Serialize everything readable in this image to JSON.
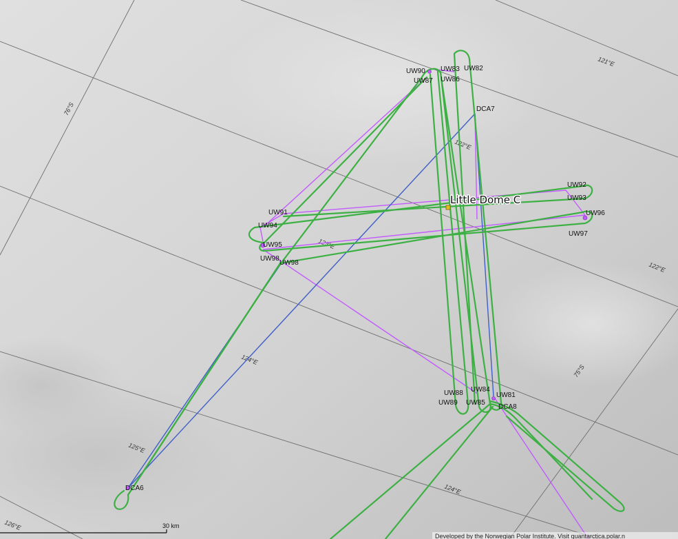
{
  "map": {
    "site_label": "Little Dome C",
    "scale_bar": {
      "label": "30 km"
    },
    "attribution": "Developed by the Norwegian Polar Institute. Visit quantarctica.polar.n",
    "grid_labels": {
      "lon_121": "121°E",
      "lon_122": "122°E",
      "lon_123": "123°E",
      "lon_124": "124°E",
      "lon_125": "125°E",
      "lon_126": "126°E",
      "lon_124b": "124°E",
      "lon_122b": "122°E",
      "lat_76": "76°S",
      "lat_75": "75°S"
    },
    "waypoints": {
      "uw82": "UW82",
      "uw83": "UW83",
      "uw86": "UW86",
      "uw87": "UW87",
      "uw90": "UW90",
      "dca7": "DCA7",
      "uw92": "UW92",
      "uw93": "UW93",
      "uw91": "UW91",
      "uw94": "UW94",
      "uw95": "UW95",
      "uw96": "UW96",
      "uw97": "UW97",
      "uw98": "UW98",
      "uw98b": "UW98",
      "uw84": "UW84",
      "uw88": "UW88",
      "uw89": "UW89",
      "uw85": "UW85",
      "uw81": "UW81",
      "dca8": "DCA8",
      "dca6": "DCA6"
    },
    "colors": {
      "flight_track": "#3cb043",
      "planned_route": "#c25bff",
      "transit_route": "#3f5ec8",
      "grid": "#6e6e6e",
      "background": "#d0d0d0"
    }
  }
}
